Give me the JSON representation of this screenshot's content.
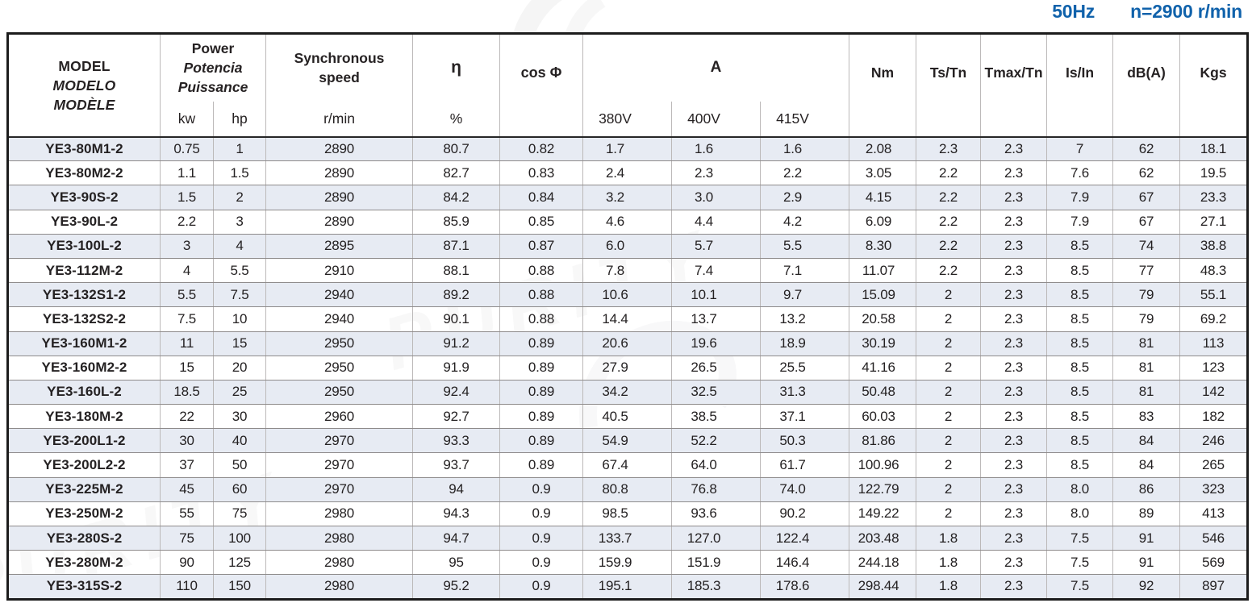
{
  "page": {
    "frequency_label": "50Hz",
    "speed_label": "n=2900 r/min",
    "accent_color": "#1062ab",
    "band_color": "#e7ebf3",
    "watermark_text": "PURITY"
  },
  "table": {
    "header": {
      "model_line1": "MODEL",
      "model_line2": "MODELO",
      "model_line3": "MODÈLE",
      "power_line1": "Power",
      "power_line2": "Potencia",
      "power_line3": "Puissance",
      "power_sub_kw": "kw",
      "power_sub_hp": "hp",
      "sync_line1": "Synchronous",
      "sync_line2": "speed",
      "sync_sub": "r/min",
      "eta": "η",
      "eta_sub": "%",
      "cos_phi": "cos Φ",
      "current": "A",
      "current_sub_380": "380V",
      "current_sub_400": "400V",
      "current_sub_415": "415V",
      "nm": "Nm",
      "ts_tn": "Ts/Tn",
      "tmax_tn": "Tmax/Tn",
      "is_in": "Is/In",
      "db": "dB(A)",
      "kgs": "Kgs"
    },
    "row_fields": [
      "model",
      "kw",
      "hp",
      "speed",
      "eta",
      "cos_phi",
      "a380",
      "a400",
      "a415",
      "nm",
      "ts_tn",
      "tmax_tn",
      "is_in",
      "db",
      "kgs"
    ],
    "rows": [
      [
        "YE3-80M1-2",
        "0.75",
        "1",
        "2890",
        "80.7",
        "0.82",
        "1.7",
        "1.6",
        "1.6",
        "2.08",
        "2.3",
        "2.3",
        "7",
        "62",
        "18.1"
      ],
      [
        "YE3-80M2-2",
        "1.1",
        "1.5",
        "2890",
        "82.7",
        "0.83",
        "2.4",
        "2.3",
        "2.2",
        "3.05",
        "2.2",
        "2.3",
        "7.6",
        "62",
        "19.5"
      ],
      [
        "YE3-90S-2",
        "1.5",
        "2",
        "2890",
        "84.2",
        "0.84",
        "3.2",
        "3.0",
        "2.9",
        "4.15",
        "2.2",
        "2.3",
        "7.9",
        "67",
        "23.3"
      ],
      [
        "YE3-90L-2",
        "2.2",
        "3",
        "2890",
        "85.9",
        "0.85",
        "4.6",
        "4.4",
        "4.2",
        "6.09",
        "2.2",
        "2.3",
        "7.9",
        "67",
        "27.1"
      ],
      [
        "YE3-100L-2",
        "3",
        "4",
        "2895",
        "87.1",
        "0.87",
        "6.0",
        "5.7",
        "5.5",
        "8.30",
        "2.2",
        "2.3",
        "8.5",
        "74",
        "38.8"
      ],
      [
        "YE3-112M-2",
        "4",
        "5.5",
        "2910",
        "88.1",
        "0.88",
        "7.8",
        "7.4",
        "7.1",
        "11.07",
        "2.2",
        "2.3",
        "8.5",
        "77",
        "48.3"
      ],
      [
        "YE3-132S1-2",
        "5.5",
        "7.5",
        "2940",
        "89.2",
        "0.88",
        "10.6",
        "10.1",
        "9.7",
        "15.09",
        "2",
        "2.3",
        "8.5",
        "79",
        "55.1"
      ],
      [
        "YE3-132S2-2",
        "7.5",
        "10",
        "2940",
        "90.1",
        "0.88",
        "14.4",
        "13.7",
        "13.2",
        "20.58",
        "2",
        "2.3",
        "8.5",
        "79",
        "69.2"
      ],
      [
        "YE3-160M1-2",
        "11",
        "15",
        "2950",
        "91.2",
        "0.89",
        "20.6",
        "19.6",
        "18.9",
        "30.19",
        "2",
        "2.3",
        "8.5",
        "81",
        "113"
      ],
      [
        "YE3-160M2-2",
        "15",
        "20",
        "2950",
        "91.9",
        "0.89",
        "27.9",
        "26.5",
        "25.5",
        "41.16",
        "2",
        "2.3",
        "8.5",
        "81",
        "123"
      ],
      [
        "YE3-160L-2",
        "18.5",
        "25",
        "2950",
        "92.4",
        "0.89",
        "34.2",
        "32.5",
        "31.3",
        "50.48",
        "2",
        "2.3",
        "8.5",
        "81",
        "142"
      ],
      [
        "YE3-180M-2",
        "22",
        "30",
        "2960",
        "92.7",
        "0.89",
        "40.5",
        "38.5",
        "37.1",
        "60.03",
        "2",
        "2.3",
        "8.5",
        "83",
        "182"
      ],
      [
        "YE3-200L1-2",
        "30",
        "40",
        "2970",
        "93.3",
        "0.89",
        "54.9",
        "52.2",
        "50.3",
        "81.86",
        "2",
        "2.3",
        "8.5",
        "84",
        "246"
      ],
      [
        "YE3-200L2-2",
        "37",
        "50",
        "2970",
        "93.7",
        "0.89",
        "67.4",
        "64.0",
        "61.7",
        "100.96",
        "2",
        "2.3",
        "8.5",
        "84",
        "265"
      ],
      [
        "YE3-225M-2",
        "45",
        "60",
        "2970",
        "94",
        "0.9",
        "80.8",
        "76.8",
        "74.0",
        "122.79",
        "2",
        "2.3",
        "8.0",
        "86",
        "323"
      ],
      [
        "YE3-250M-2",
        "55",
        "75",
        "2980",
        "94.3",
        "0.9",
        "98.5",
        "93.6",
        "90.2",
        "149.22",
        "2",
        "2.3",
        "8.0",
        "89",
        "413"
      ],
      [
        "YE3-280S-2",
        "75",
        "100",
        "2980",
        "94.7",
        "0.9",
        "133.7",
        "127.0",
        "122.4",
        "203.48",
        "1.8",
        "2.3",
        "7.5",
        "91",
        "546"
      ],
      [
        "YE3-280M-2",
        "90",
        "125",
        "2980",
        "95",
        "0.9",
        "159.9",
        "151.9",
        "146.4",
        "244.18",
        "1.8",
        "2.3",
        "7.5",
        "91",
        "569"
      ],
      [
        "YE3-315S-2",
        "110",
        "150",
        "2980",
        "95.2",
        "0.9",
        "195.1",
        "185.3",
        "178.6",
        "298.44",
        "1.8",
        "2.3",
        "7.5",
        "92",
        "897"
      ]
    ]
  }
}
